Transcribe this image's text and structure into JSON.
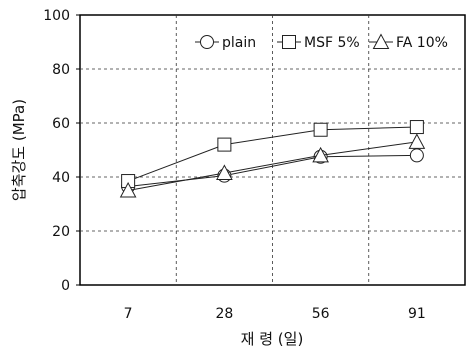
{
  "chart_data": {
    "type": "line",
    "title": "",
    "xlabel": "재 령 (일)",
    "ylabel": "압축강도 (MPa)",
    "categories": [
      "7",
      "28",
      "56",
      "91"
    ],
    "ylim": [
      0,
      100
    ],
    "yticks": [
      "0",
      "20",
      "40",
      "60",
      "80",
      "100"
    ],
    "grid": true,
    "legend_position": "top-right",
    "series": [
      {
        "name": "plain",
        "marker": "circle",
        "values": [
          36.5,
          40.5,
          47.5,
          48.0
        ]
      },
      {
        "name": "MSF 5%",
        "marker": "square",
        "values": [
          38.5,
          52.0,
          57.5,
          58.5
        ]
      },
      {
        "name": "FA 10%",
        "marker": "triangle",
        "values": [
          35.0,
          41.5,
          48.0,
          53.0
        ]
      }
    ]
  }
}
